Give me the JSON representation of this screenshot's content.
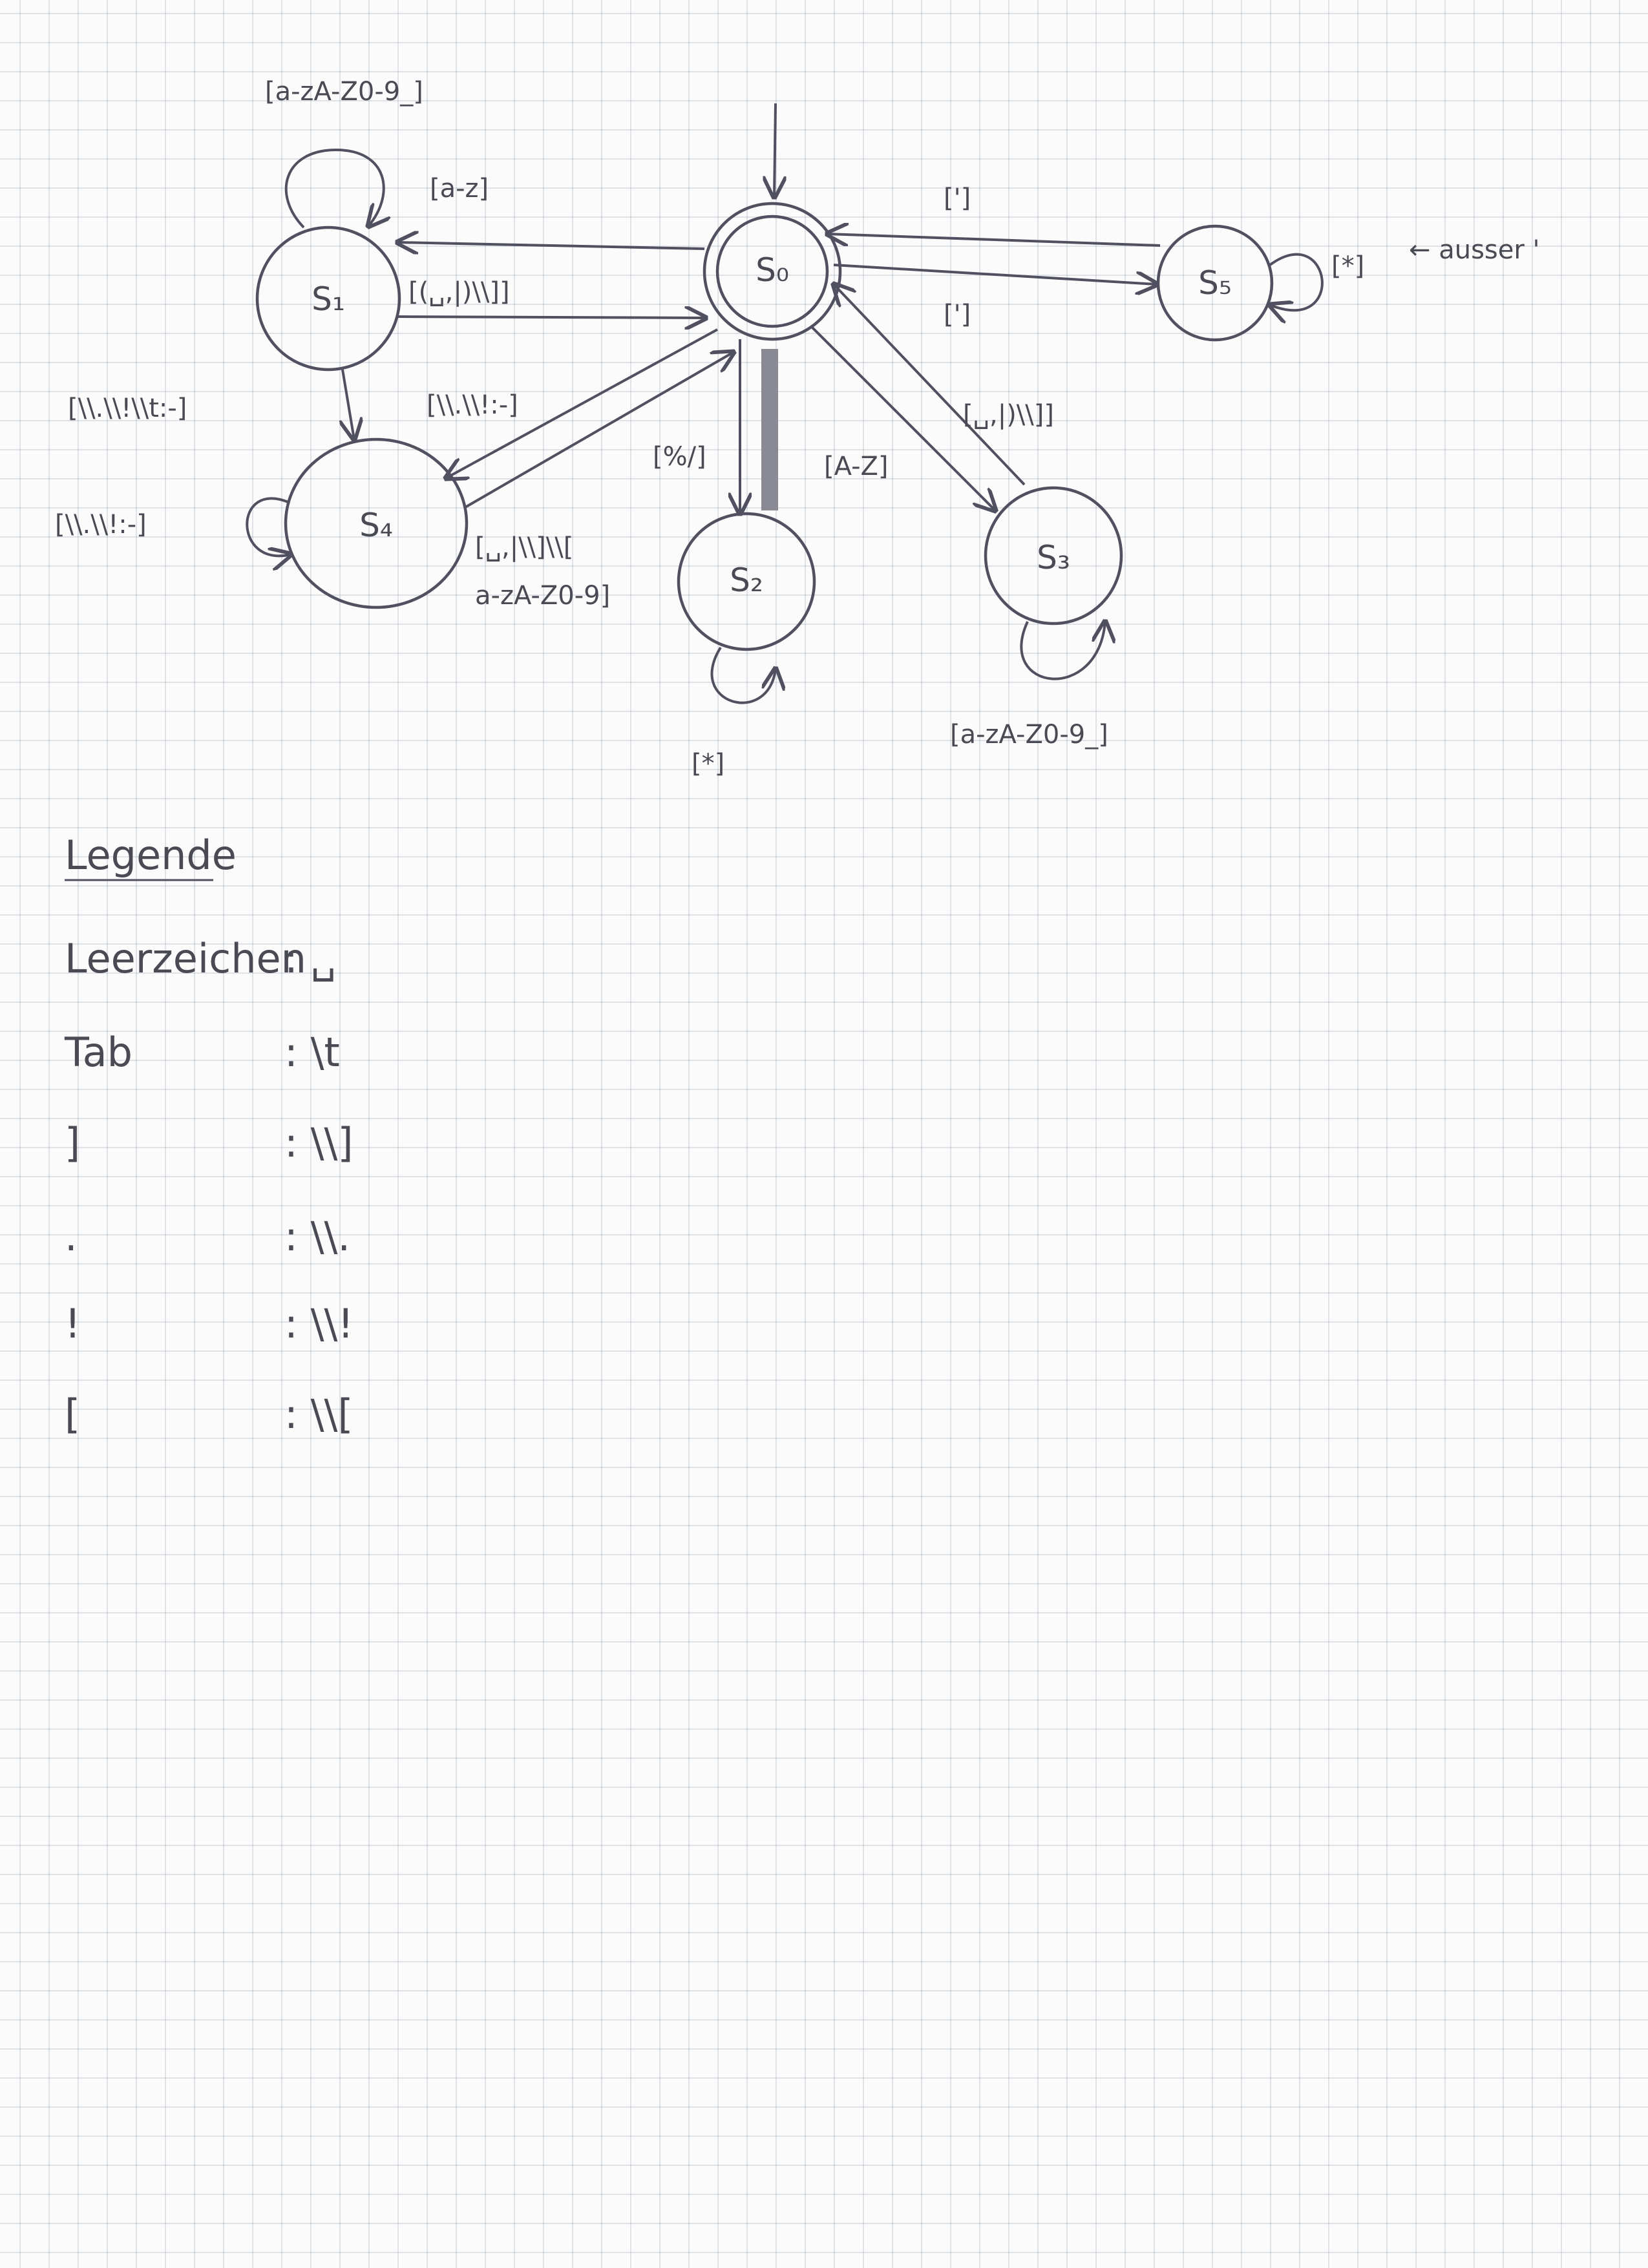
{
  "states": {
    "s0": "S₀",
    "s1": "S₁",
    "s2": "S₂",
    "s3": "S₃",
    "s4": "S₄",
    "s5": "S₅"
  },
  "edges": {
    "s1_self": "[a-zA-Z0-9_]",
    "s0_to_s1": "[a-z]",
    "s1_to_s0": "[(␣,|)\\\\]]",
    "s1_to_s4": "[\\\\.\\\\!\\\\t:-]",
    "s4_self": "[\\\\.\\\\!:-]",
    "s0_to_s4": "[\\\\.\\\\!:-]",
    "s4_to_s0_line1": "[␣,|\\\\]\\\\[",
    "s4_to_s0_line2": "a-zA-Z0-9]",
    "s0_to_s2": "[%/]",
    "s2_self": "[*]",
    "s0_to_s3": "[A-Z]",
    "s3_to_s0": "[␣,|)\\\\]]",
    "s3_self": "[a-zA-Z0-9_]",
    "s5_to_s0": "[']",
    "s0_to_s5": "[']",
    "s5_self": "[*]",
    "s5_self_note": "← ausser '"
  },
  "legend": {
    "title": "Legende",
    "rows": [
      {
        "symbol": "Leerzeichen",
        "code": ": ␣"
      },
      {
        "symbol": "Tab",
        "code": ": \\t"
      },
      {
        "symbol": "]",
        "code": ": \\\\]"
      },
      {
        "symbol": ".",
        "code": ": \\\\."
      },
      {
        "symbol": "!",
        "code": ": \\\\!"
      },
      {
        "symbol": "[",
        "code": ": \\\\["
      }
    ]
  },
  "colors": {
    "ink": "#505060",
    "grid": "#a0aab8"
  }
}
